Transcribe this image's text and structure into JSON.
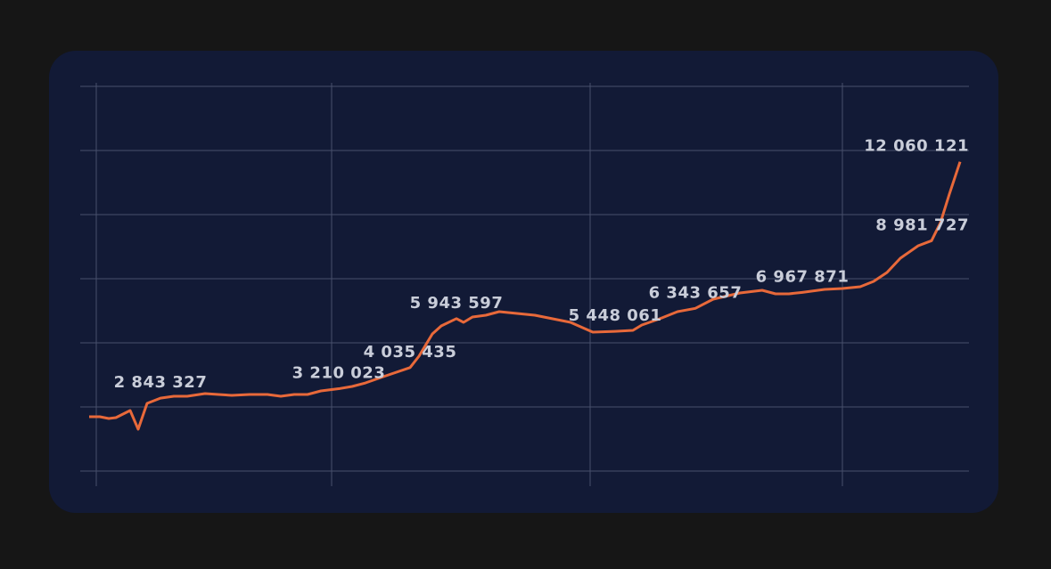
{
  "chart_data": {
    "type": "line",
    "x": [
      0,
      12,
      22,
      30,
      46,
      55,
      65,
      80,
      95,
      110,
      130,
      145,
      160,
      180,
      200,
      215,
      230,
      245,
      260,
      280,
      295,
      310,
      330,
      360,
      370,
      385,
      395,
      412,
      420,
      430,
      445,
      460,
      480,
      500,
      520,
      540,
      565,
      590,
      610,
      620,
      640,
      660,
      680,
      700,
      730,
      755,
      770,
      785,
      800,
      825,
      845,
      865,
      880,
      895,
      910,
      930,
      945,
      955,
      965,
      977
    ],
    "series": [
      {
        "color": "#e8693a",
        "values": [
          2118000,
          2118000,
          2049000,
          2083000,
          2361000,
          1632000,
          2639000,
          2843327,
          2917000,
          2917000,
          3021000,
          2986000,
          2951000,
          2986000,
          2986000,
          2917000,
          2986000,
          2986000,
          3125000,
          3210023,
          3299000,
          3437000,
          3681000,
          4035435,
          4479000,
          5347000,
          5660000,
          5943597,
          5799000,
          6007000,
          6076000,
          6215000,
          6146000,
          6076000,
          5937000,
          5799000,
          5417000,
          5448061,
          5486000,
          5694000,
          5937000,
          6215000,
          6343657,
          6701000,
          6944000,
          7049000,
          6910000,
          6910000,
          6967871,
          7083000,
          7118000,
          7187000,
          7396000,
          7743000,
          8299000,
          8785000,
          8981727,
          9687000,
          10799000,
          12060121
        ],
        "value_labels": [
          null,
          null,
          null,
          null,
          null,
          null,
          null,
          "2 843 327",
          null,
          null,
          null,
          null,
          null,
          null,
          null,
          null,
          null,
          null,
          null,
          "3 210 023",
          null,
          null,
          null,
          "4 035 435",
          null,
          null,
          null,
          "5 943 597",
          null,
          null,
          null,
          null,
          null,
          null,
          null,
          null,
          null,
          "5 448 061",
          null,
          null,
          null,
          null,
          "6 343 657",
          null,
          null,
          null,
          null,
          null,
          "6 967 871",
          null,
          null,
          null,
          null,
          null,
          null,
          null,
          "8 981 727",
          null,
          null,
          "12 060 121"
        ]
      }
    ],
    "xlim": [
      -10,
      987
    ],
    "ylim": [
      0,
      15000000
    ],
    "xgrid": [
      8,
      272,
      562,
      845
    ],
    "ygrid": [
      0,
      2500000,
      5000000,
      7500000,
      10000000,
      12500000,
      15000000
    ],
    "grid": true
  }
}
